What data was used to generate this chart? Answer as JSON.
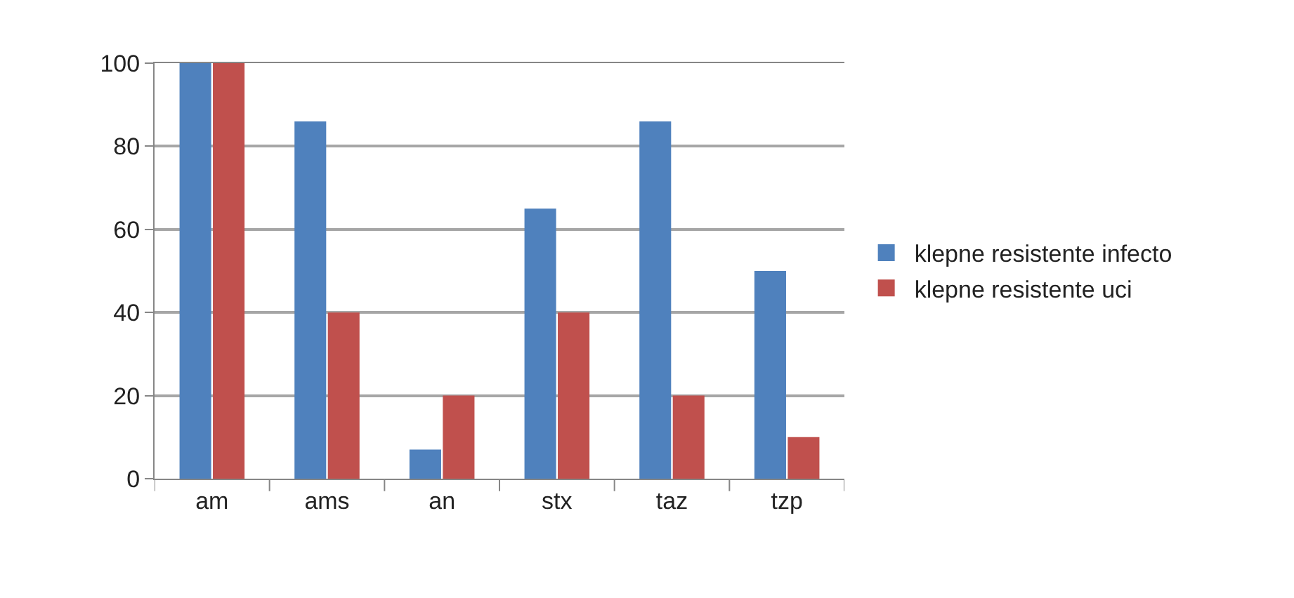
{
  "chart_data": {
    "type": "bar",
    "categories": [
      "am",
      "ams",
      "an",
      "stx",
      "taz",
      "tzp"
    ],
    "series": [
      {
        "name": "klepne resistente infecto",
        "color": "#4f81bd",
        "values": [
          100,
          86,
          7,
          65,
          86,
          50
        ]
      },
      {
        "name": "klepne resistente uci",
        "color": "#c0504d",
        "values": [
          100,
          40,
          20,
          40,
          20,
          10
        ]
      }
    ],
    "ylim": [
      0,
      100
    ],
    "yticks": [
      0,
      20,
      40,
      60,
      80,
      100
    ],
    "grid": "y",
    "legend": "right"
  }
}
